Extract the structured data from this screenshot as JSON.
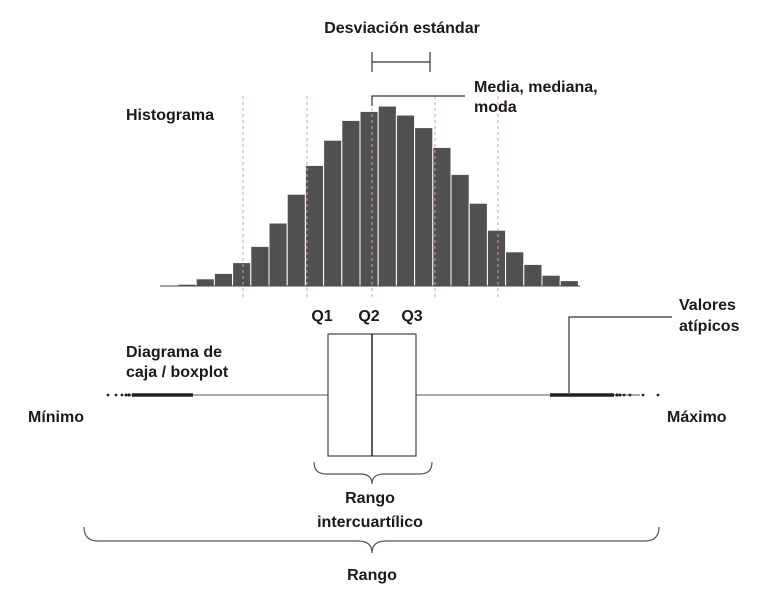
{
  "labels": {
    "std_dev": "Desviación estándar",
    "mean_line1": "Media, mediana,",
    "mean_line2": "moda",
    "histogram": "Histograma",
    "q1": "Q1",
    "q2": "Q2",
    "q3": "Q3",
    "outliers_line1": "Valores",
    "outliers_line2": "atípicos",
    "boxplot_line1": "Diagrama de",
    "boxplot_line2": "caja / boxplot",
    "minimum": "Mínimo",
    "maximum": "Máximo",
    "iqr_line1": "Rango",
    "iqr_line2": "intercuartílico",
    "range": "Rango"
  },
  "colors": {
    "bar": "#505050",
    "bar_edge": "#ffffff",
    "dashed_line": "#d9a0a0",
    "stroke": "#333333",
    "text": "#1a1a1a"
  },
  "histogram": {
    "relative_heights": [
      0.01,
      0.04,
      0.07,
      0.13,
      0.22,
      0.35,
      0.51,
      0.67,
      0.81,
      0.92,
      0.97,
      1.0,
      0.95,
      0.88,
      0.77,
      0.62,
      0.46,
      0.31,
      0.19,
      0.12,
      0.06,
      0.03
    ]
  }
}
